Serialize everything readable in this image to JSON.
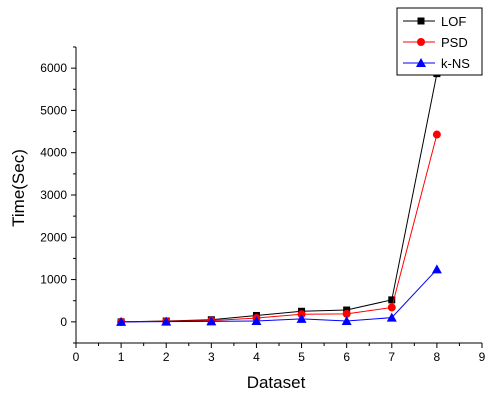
{
  "chart_data": {
    "type": "line",
    "xlabel": "Dataset",
    "ylabel": "Time(Sec)",
    "xlim": [
      0,
      9
    ],
    "ylim": [
      -500,
      6500
    ],
    "x_ticks": [
      "0",
      "1",
      "2",
      "3",
      "4",
      "5",
      "6",
      "7",
      "8",
      "9"
    ],
    "y_ticks": [
      "0",
      "1000",
      "2000",
      "3000",
      "4000",
      "5000",
      "6000"
    ],
    "grid": false,
    "legend_position": "top-right",
    "x": [
      1,
      2,
      3,
      4,
      5,
      6,
      7,
      8
    ],
    "series": [
      {
        "name": "LOF",
        "color": "#000000",
        "marker": "square",
        "values": [
          0,
          20,
          50,
          150,
          250,
          280,
          520,
          5870
        ]
      },
      {
        "name": "PSD",
        "color": "#ff0000",
        "marker": "circle",
        "values": [
          0,
          15,
          30,
          90,
          180,
          190,
          340,
          4430
        ]
      },
      {
        "name": "k-NS",
        "color": "#0000ff",
        "marker": "triangle",
        "values": [
          0,
          5,
          10,
          20,
          70,
          20,
          100,
          1240
        ]
      }
    ]
  }
}
